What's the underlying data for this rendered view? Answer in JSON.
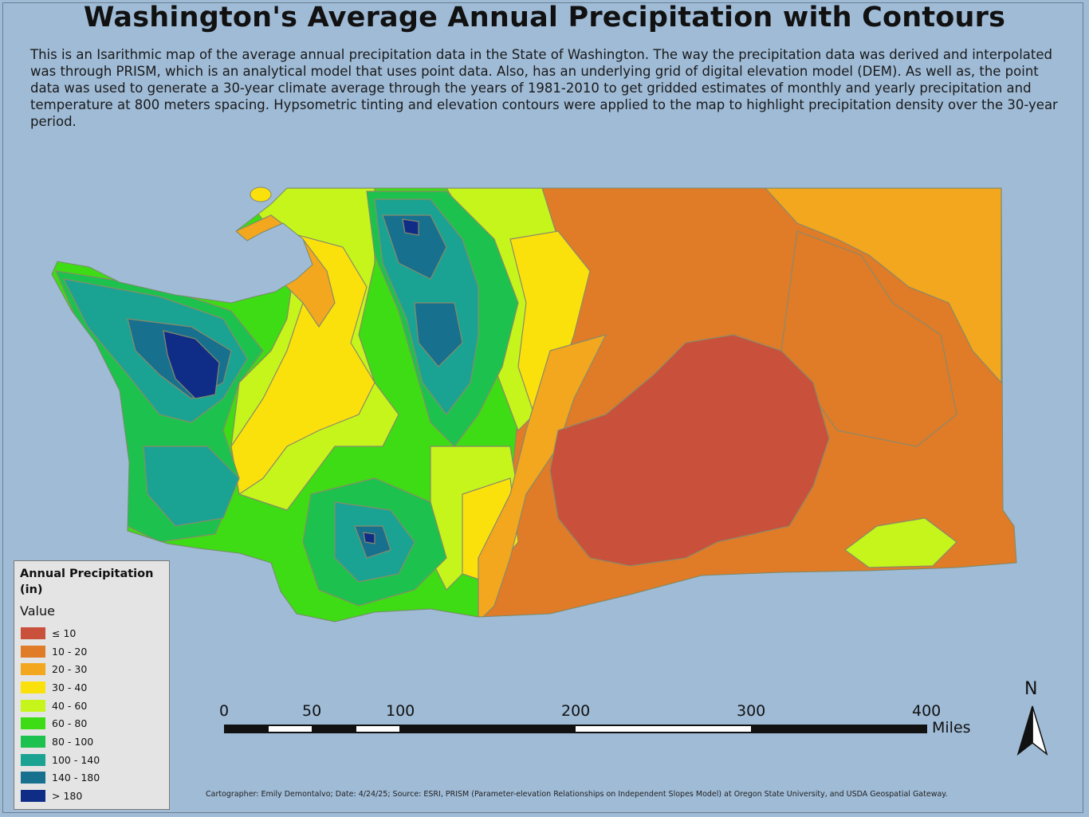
{
  "title": "Washington's Average Annual Precipitation with Contours",
  "description": "This is an Isarithmic map of the average annual precipitation data in the State of Washington. The way the precipitation data was derived and interpolated was through PRISM, which is an analytical model that uses point data. Also, has an underlying grid of digital elevation model (DEM). As well as, the point data was used to generate a 30-year climate average through the years of 1981-2010 to get gridded estimates of monthly and yearly precipitation and temperature at 800 meters spacing. Hypsometric tinting and elevation contours were applied to the map to highlight precipitation density over the 30-year period.",
  "legend": {
    "title": "Annual Precipitation (in)",
    "subtitle": "Value",
    "items": [
      {
        "label": "≤ 10",
        "color": "#c9503a"
      },
      {
        "label": "10 - 20",
        "color": "#e07b27"
      },
      {
        "label": "20 - 30",
        "color": "#f2a71f"
      },
      {
        "label": "30 - 40",
        "color": "#fbe10b"
      },
      {
        "label": "40 - 60",
        "color": "#c6f51c"
      },
      {
        "label": "60 - 80",
        "color": "#3ddc14"
      },
      {
        "label": "80 - 100",
        "color": "#1dc24e"
      },
      {
        "label": "100 - 140",
        "color": "#1aa392"
      },
      {
        "label": "140 - 180",
        "color": "#17708e"
      },
      {
        "label": "> 180",
        "color": "#0f2d86"
      }
    ]
  },
  "scale_bar": {
    "ticks": [
      "0",
      "50",
      "100",
      "200",
      "300",
      "400"
    ],
    "unit": "Miles"
  },
  "north_arrow": {
    "label": "N"
  },
  "credits": "Cartographer: Emily Demontalvo; Date: 4/24/25; Source: ESRI, PRISM (Parameter-elevation Relationships on Independent Slopes Model) at Oregon State University, and USDA Geospatial Gateway.",
  "colors": {
    "background": "#9fbbd6",
    "contour": "#8a8a6a"
  }
}
